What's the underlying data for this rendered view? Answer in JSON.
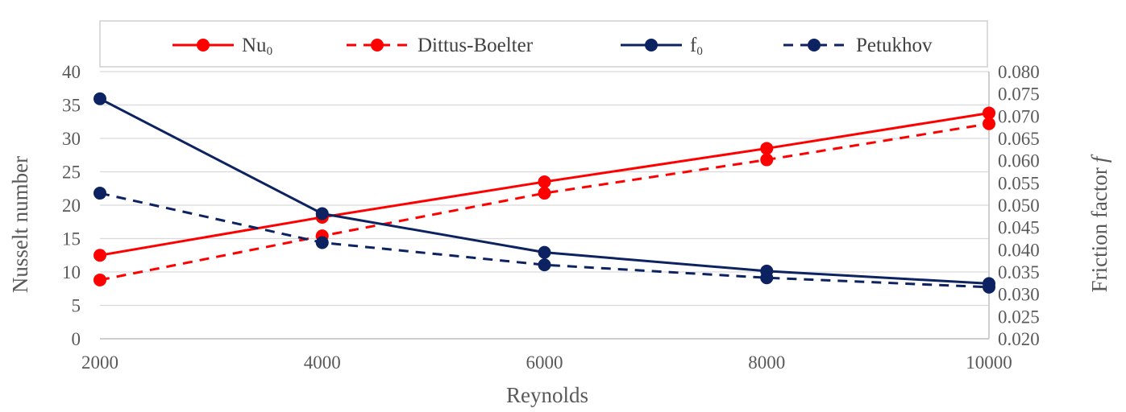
{
  "chart_data": {
    "type": "line",
    "x": [
      2000,
      4000,
      6000,
      8000,
      10000
    ],
    "x_ticks": [
      "2000",
      "4000",
      "6000",
      "8000",
      "10000"
    ],
    "xlabel": "Reynolds",
    "xlim": [
      2000,
      10000
    ],
    "y_left": {
      "label": "Nusselt number",
      "lim": [
        0,
        40
      ],
      "ticks": [
        "0",
        "5",
        "10",
        "15",
        "20",
        "25",
        "30",
        "35",
        "40"
      ]
    },
    "y_right": {
      "label": "Friction factor",
      "label_symbol": "f",
      "lim": [
        0.02,
        0.08
      ],
      "ticks": [
        "0.020",
        "0.025",
        "0.030",
        "0.035",
        "0.040",
        "0.045",
        "0.050",
        "0.055",
        "0.060",
        "0.065",
        "0.070",
        "0.075",
        "0.080"
      ]
    },
    "grid": true,
    "legend_position": "top",
    "series": [
      {
        "name": "Nu",
        "name_sub": "0",
        "axis": "left",
        "style": "solid",
        "color": "#ff0000",
        "values": [
          12.5,
          18.2,
          23.5,
          28.5,
          33.8
        ]
      },
      {
        "name": "Dittus-Boelter",
        "axis": "left",
        "style": "dashed",
        "color": "#ff0000",
        "values": [
          8.8,
          15.4,
          21.8,
          26.8,
          32.2
        ]
      },
      {
        "name": "f",
        "name_sub": "0",
        "axis": "right",
        "style": "solid",
        "color": "#0d2260",
        "values": [
          0.0739,
          0.0481,
          0.0394,
          0.0352,
          0.0324
        ]
      },
      {
        "name": "Petukhov",
        "axis": "right",
        "style": "dashed",
        "color": "#0d2260",
        "values": [
          0.0527,
          0.0416,
          0.0366,
          0.0337,
          0.0316
        ]
      }
    ]
  }
}
